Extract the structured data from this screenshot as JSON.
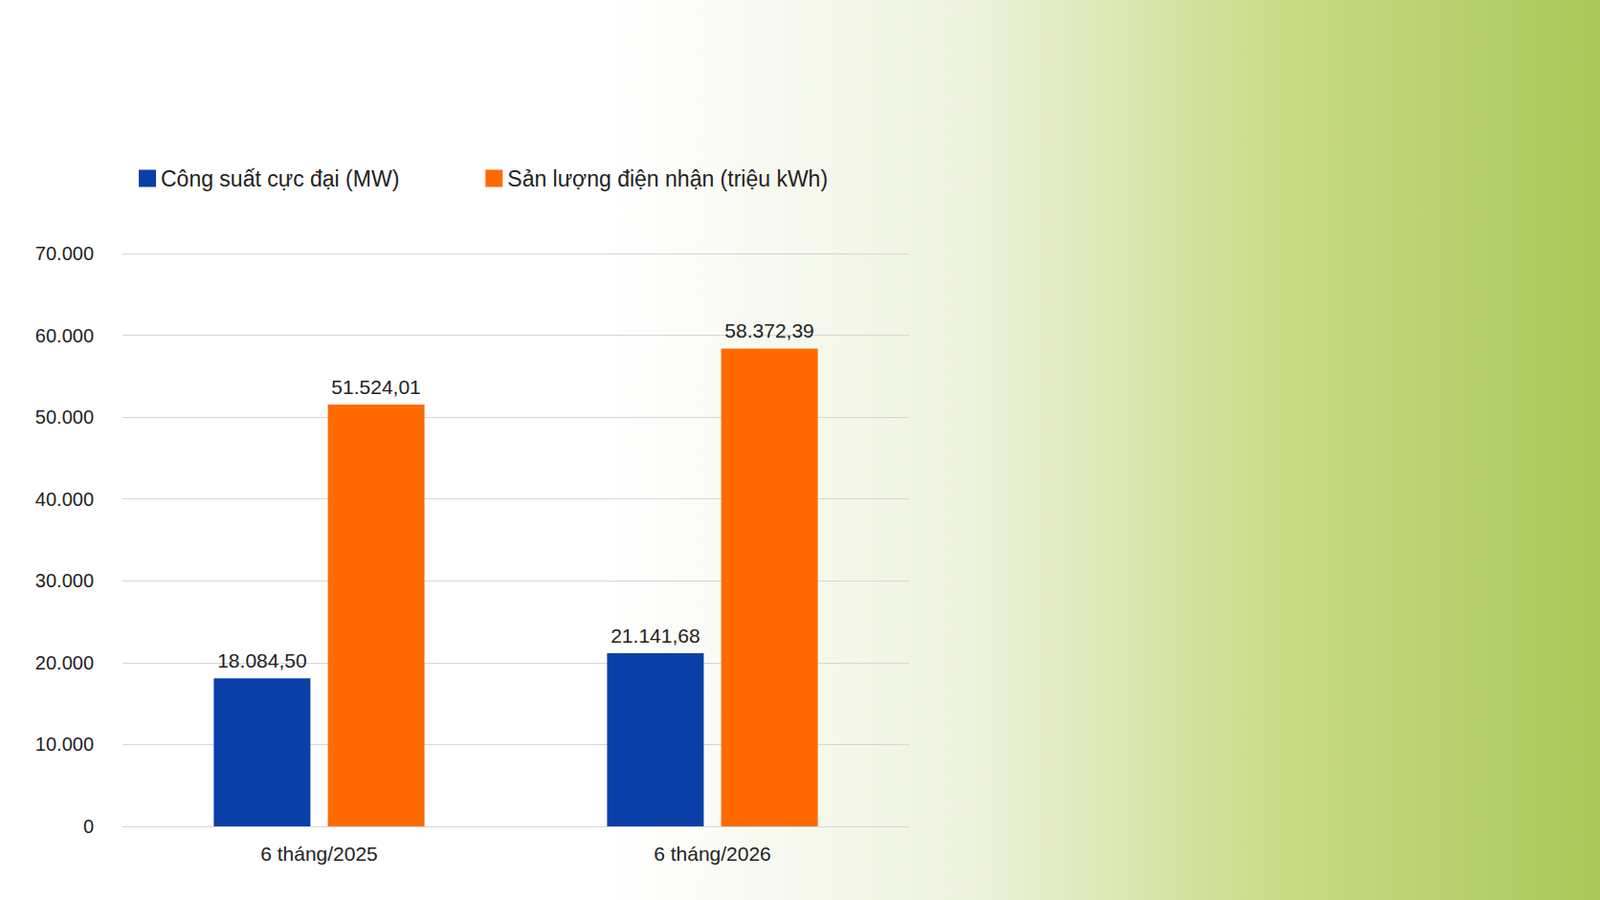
{
  "chart_data": {
    "type": "bar",
    "categories": [
      "6 tháng/2025",
      "6 tháng/2026"
    ],
    "series": [
      {
        "name": "Công suất cực đại (MW)",
        "color": "#0a3fa8",
        "values": [
          18084.5,
          21141.68
        ],
        "value_labels": [
          "18.084,50",
          "21.141,68"
        ]
      },
      {
        "name": "Sản lượng điện nhận (triệu kWh)",
        "color": "#ff6a00",
        "values": [
          51524.01,
          58372.39
        ],
        "value_labels": [
          "51.524,01",
          "58.372,39"
        ]
      }
    ],
    "ylim": [
      0,
      70000
    ],
    "yticks": [
      0,
      {
        "value": 10000,
        "label": "10.000"
      },
      {
        "value": 20000,
        "label": "20.000"
      },
      {
        "value": 30000,
        "label": "30.000"
      },
      {
        "value": 40000,
        "label": "40.000"
      },
      {
        "value": 50000,
        "label": "50.000"
      },
      {
        "value": 60000,
        "label": "60.000"
      },
      {
        "value": 70000,
        "label": "70.000"
      }
    ],
    "grid": true,
    "legend": "top",
    "data_labels": true
  }
}
